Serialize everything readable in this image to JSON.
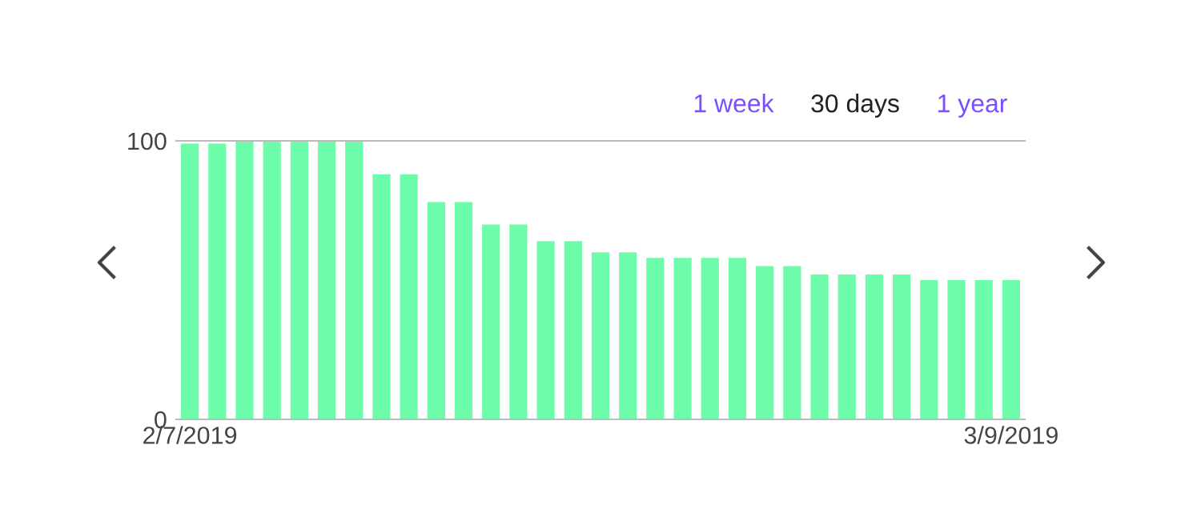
{
  "chart_data": {
    "type": "bar",
    "categories": [
      "2/7/2019",
      null,
      null,
      null,
      null,
      null,
      null,
      null,
      null,
      null,
      null,
      null,
      null,
      null,
      null,
      null,
      null,
      null,
      null,
      null,
      null,
      null,
      null,
      null,
      null,
      null,
      null,
      null,
      null,
      null,
      "3/9/2019"
    ],
    "values": [
      99,
      99,
      100,
      100,
      100,
      100,
      100,
      88,
      88,
      78,
      78,
      70,
      70,
      64,
      64,
      60,
      60,
      58,
      58,
      58,
      58,
      55,
      55,
      52,
      52,
      52,
      52,
      50,
      50,
      50,
      50
    ],
    "color": "#6dfdaa",
    "ylim": [
      0,
      100
    ],
    "yticks": [
      0,
      100
    ],
    "annotations": [
      "1 week",
      "30 days",
      "1 year"
    ]
  }
}
